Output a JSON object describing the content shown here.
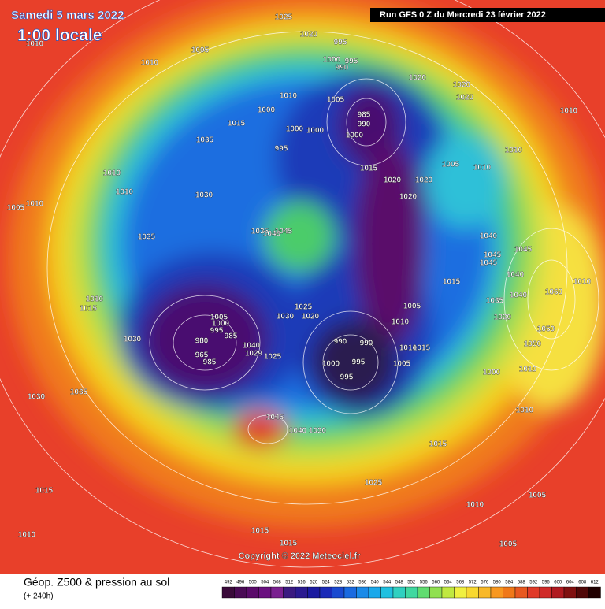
{
  "header": {
    "date": "Samedi 5 mars 2022",
    "time": "1:00 locale",
    "run": "Run GFS 0 Z du Mercredi 23 février 2022"
  },
  "copyright": "Copyright © 2022 Meteociel.fr",
  "legend": {
    "title": "Géop. Z500 & pression au sol",
    "lead": "(+ 240h)",
    "ticks": [
      492,
      496,
      500,
      504,
      508,
      512,
      516,
      520,
      524,
      528,
      532,
      536,
      540,
      544,
      548,
      552,
      556,
      560,
      564,
      568,
      572,
      576,
      580,
      584,
      588,
      592,
      596,
      600,
      604,
      608,
      612
    ],
    "colors": [
      "#3a0a3a",
      "#4a0a55",
      "#5a0a6a",
      "#6a1080",
      "#7a2090",
      "#3a1a80",
      "#2a1a90",
      "#1a1aa0",
      "#1a2ab8",
      "#1a4ad0",
      "#1a6ae0",
      "#1a8ae8",
      "#1aa8ea",
      "#20c0e0",
      "#30d0c0",
      "#40d8a0",
      "#60dc70",
      "#90e050",
      "#c0e840",
      "#f0f040",
      "#f8d830",
      "#f8b828",
      "#f89820",
      "#f07818",
      "#e85820",
      "#e03a28",
      "#d02a28",
      "#b01a20",
      "#801010",
      "#500808",
      "#200000"
    ]
  },
  "pressure_labels": [
    "1025",
    "1020",
    "995",
    "1010",
    "1005",
    "1000",
    "995",
    "990",
    "1010",
    "1020",
    "1020",
    "1010",
    "1005",
    "1020",
    "1000",
    "985",
    "990",
    "1010",
    "1000",
    "1000",
    "1000",
    "1015",
    "1035",
    "995",
    "1010",
    "1005",
    "1010",
    "1015",
    "1010",
    "1020",
    "1020",
    "1010",
    "1030",
    "1020",
    "1005",
    "1010",
    "1035",
    "1040",
    "1045",
    "1035",
    "1040",
    "1045",
    "1045",
    "1045",
    "1040",
    "1015",
    "1010",
    "1060",
    "1010",
    "1015",
    "1040",
    "1035",
    "1025",
    "1005",
    "1020",
    "1030",
    "1005",
    "1000",
    "995",
    "985",
    "1020",
    "1010",
    "1050",
    "980",
    "1040",
    "990",
    "990",
    "1010",
    "1015",
    "1050",
    "1030",
    "965",
    "985",
    "1029",
    "1025",
    "1000",
    "995",
    "1005",
    "995",
    "1000",
    "1010",
    "1035",
    "1030",
    "1010",
    "1045",
    "1040",
    "1030",
    "1015",
    "1025",
    "1010",
    "1005",
    "1015",
    "1015",
    "1010",
    "1015",
    "1005"
  ]
}
